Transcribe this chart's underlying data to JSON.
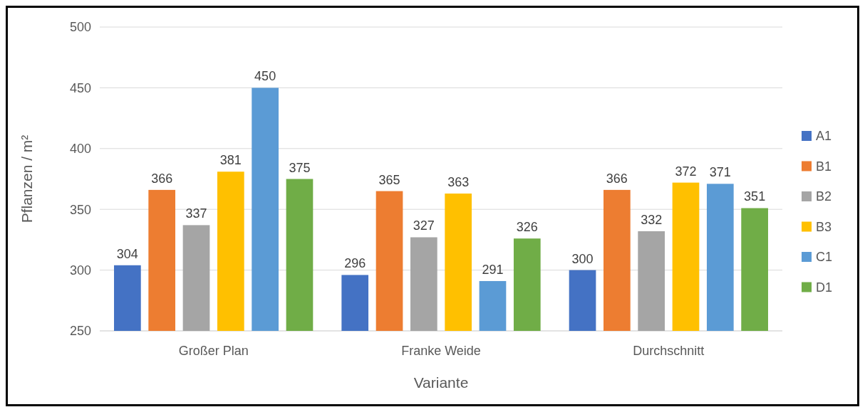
{
  "chart_data": {
    "type": "bar",
    "xlabel": "Variante",
    "ylabel": "Pflanzen / m²",
    "categories": [
      "Großer Plan",
      "Franke Weide",
      "Durchschnitt"
    ],
    "series": [
      {
        "name": "A1",
        "color": "#4472c4",
        "values": [
          304,
          296,
          300
        ]
      },
      {
        "name": "B1",
        "color": "#ed7d31",
        "values": [
          366,
          365,
          366
        ]
      },
      {
        "name": "B2",
        "color": "#a5a5a5",
        "values": [
          337,
          327,
          332
        ]
      },
      {
        "name": "B3",
        "color": "#ffc000",
        "values": [
          381,
          363,
          372
        ]
      },
      {
        "name": "C1",
        "color": "#5b9bd5",
        "values": [
          450,
          291,
          371
        ]
      },
      {
        "name": "D1",
        "color": "#70ad47",
        "values": [
          375,
          326,
          351
        ]
      }
    ],
    "ylim": [
      250,
      500
    ],
    "yticks": [
      250,
      300,
      350,
      400,
      450,
      500
    ],
    "grid": "y",
    "legend": "right",
    "data_labels": true
  }
}
